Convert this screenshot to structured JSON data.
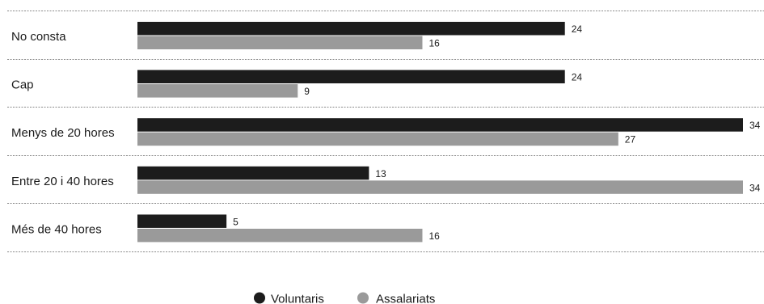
{
  "chart_data": {
    "type": "bar",
    "orientation": "horizontal",
    "title": "",
    "xlabel": "",
    "ylabel": "",
    "xlim": [
      0,
      34
    ],
    "grid": false,
    "legend_position": "bottom-center",
    "categories": [
      "No consta",
      "Cap",
      "Menys de 20 hores",
      "Entre 20 i 40 hores",
      "Més de 40 hores"
    ],
    "series": [
      {
        "name": "Voluntaris",
        "color": "#1c1c1c",
        "values": [
          24,
          24,
          34,
          13,
          5
        ]
      },
      {
        "name": "Assalariats",
        "color": "#9a9a9a",
        "values": [
          16,
          9,
          27,
          34,
          16
        ]
      }
    ]
  }
}
